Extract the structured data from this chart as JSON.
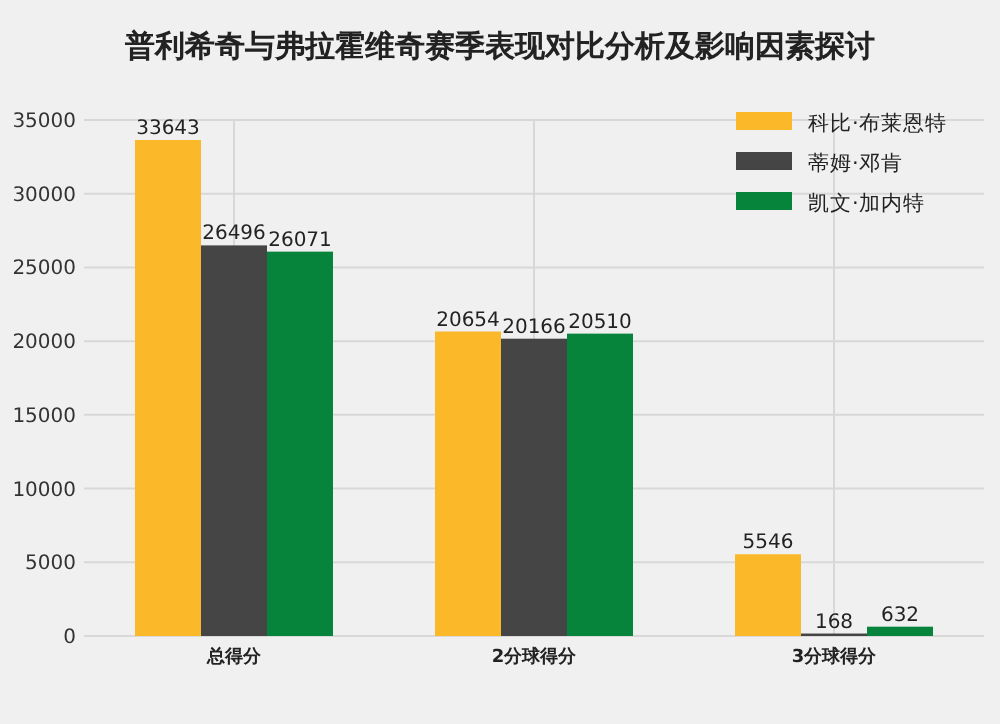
{
  "chart_data": {
    "type": "bar",
    "title": "普利希奇与弗拉霍维奇赛季表现对比分析及影响因素探讨",
    "categories": [
      "总得分",
      "2分球得分",
      "3分球得分"
    ],
    "series": [
      {
        "name": "科比·布莱恩特",
        "color": "#fbb829",
        "values": [
          33643,
          20654,
          5546
        ]
      },
      {
        "name": "蒂姆·邓肯",
        "color": "#454545",
        "values": [
          26496,
          20166,
          168
        ]
      },
      {
        "name": "凯文·加内特",
        "color": "#07843b",
        "values": [
          26071,
          20510,
          632
        ]
      }
    ],
    "ylim": [
      0,
      35000
    ],
    "yticks": [
      0,
      5000,
      10000,
      15000,
      20000,
      25000,
      30000,
      35000
    ],
    "grid": true,
    "legend": "top right",
    "data_labels": true
  }
}
